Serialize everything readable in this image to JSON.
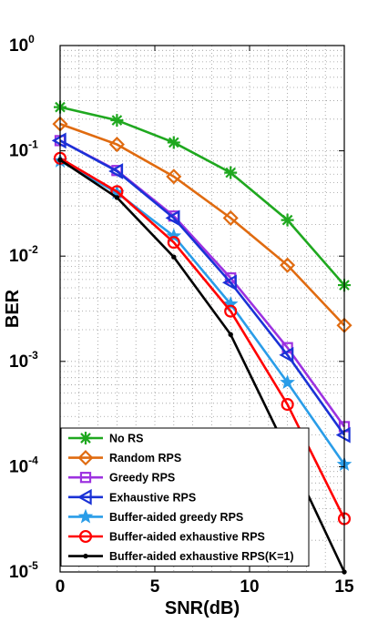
{
  "chart_data": {
    "type": "line",
    "title": "",
    "xlabel": "SNR(dB)",
    "ylabel": "BER",
    "xlim": [
      0,
      15
    ],
    "ylim": [
      1e-05,
      1
    ],
    "yscale": "log",
    "grid": true,
    "legend_position": "bottom-left",
    "x_ticks": [
      0,
      5,
      10,
      15
    ],
    "y_ticks": [
      {
        "base": "10",
        "exp": "0",
        "value": 1
      },
      {
        "base": "10",
        "exp": "-1",
        "value": 0.1
      },
      {
        "base": "10",
        "exp": "-2",
        "value": 0.01
      },
      {
        "base": "10",
        "exp": "-3",
        "value": 0.001
      },
      {
        "base": "10",
        "exp": "-4",
        "value": 0.0001
      },
      {
        "base": "10",
        "exp": "-5",
        "value": 1e-05
      }
    ],
    "x": [
      0,
      3,
      6,
      9,
      12,
      15
    ],
    "series": [
      {
        "name": "No RS",
        "color": "#1fa81f",
        "marker": "asterisk",
        "values": [
          0.26,
          0.195,
          0.12,
          0.062,
          0.022,
          0.0053
        ]
      },
      {
        "name": "Random RPS",
        "color": "#e06b10",
        "marker": "diamond",
        "values": [
          0.18,
          0.115,
          0.057,
          0.023,
          0.0082,
          0.0022
        ]
      },
      {
        "name": "Greedy RPS",
        "color": "#9d32e0",
        "marker": "square",
        "values": [
          0.125,
          0.065,
          0.024,
          0.0062,
          0.00135,
          0.00024
        ]
      },
      {
        "name": "Exhaustive RPS",
        "color": "#1a32d6",
        "marker": "triangle-left",
        "values": [
          0.125,
          0.064,
          0.023,
          0.0056,
          0.00115,
          0.0002
        ]
      },
      {
        "name": "Buffer-aided greedy RPS",
        "color": "#2a9de8",
        "marker": "star",
        "values": [
          0.08,
          0.04,
          0.0155,
          0.0035,
          0.00063,
          0.000105
        ]
      },
      {
        "name": "Buffer-aided exhaustive RPS",
        "color": "#ff0000",
        "marker": "circle",
        "values": [
          0.085,
          0.041,
          0.0135,
          0.003,
          0.00039,
          3.2e-05
        ]
      },
      {
        "name": "Buffer-aided exhaustive RPS(K=1)",
        "color": "#000000",
        "marker": "dot",
        "values": [
          0.082,
          0.036,
          0.0098,
          0.0018,
          0.00014,
          1e-05
        ]
      }
    ]
  }
}
